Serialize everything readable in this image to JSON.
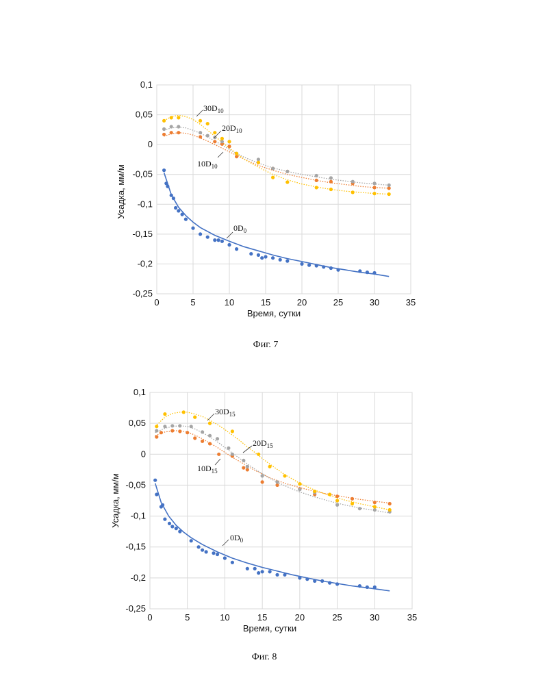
{
  "chart_data": [
    {
      "type": "scatter",
      "figure_caption": "Фиг. 7",
      "xlabel": "Время, сутки",
      "ylabel": "Усадка, мм/м",
      "xlim": [
        0,
        35
      ],
      "ylim": [
        -0.25,
        0.1
      ],
      "xticks": [
        0,
        5,
        10,
        15,
        20,
        25,
        30,
        35
      ],
      "yticks": [
        0.1,
        0.05,
        0,
        -0.05,
        -0.1,
        -0.15,
        -0.2,
        -0.25
      ],
      "xtick_labels": [
        "0",
        "5",
        "10",
        "15",
        "20",
        "25",
        "30",
        "35"
      ],
      "ytick_labels": [
        "0,1",
        "0,05",
        "0",
        "-0,05",
        "-0,1",
        "-0,15",
        "-0,2",
        "-0,25"
      ],
      "grid": true,
      "series": [
        {
          "name": "0D0",
          "label_main": "0D",
          "label_sub": "0",
          "color": "#4472c4",
          "trend_style": "solid",
          "x": [
            1,
            1.3,
            1.5,
            2,
            2.3,
            2.6,
            3,
            3.5,
            4,
            5,
            6,
            7,
            8,
            8.5,
            9,
            10,
            11,
            13,
            14,
            14.5,
            15,
            16,
            17,
            18,
            20,
            21,
            22,
            23,
            24,
            25,
            28,
            29,
            30
          ],
          "y": [
            -0.043,
            -0.065,
            -0.07,
            -0.085,
            -0.09,
            -0.106,
            -0.111,
            -0.117,
            -0.125,
            -0.14,
            -0.15,
            -0.155,
            -0.16,
            -0.16,
            -0.162,
            -0.168,
            -0.175,
            -0.183,
            -0.185,
            -0.19,
            -0.188,
            -0.19,
            -0.193,
            -0.195,
            -0.2,
            -0.202,
            -0.203,
            -0.205,
            -0.207,
            -0.21,
            -0.212,
            -0.214,
            -0.215
          ],
          "trend_x": [
            1,
            2,
            3,
            4,
            5,
            6,
            8,
            10,
            12,
            14,
            16,
            18,
            20,
            22,
            24,
            26,
            28,
            30,
            32
          ],
          "trend_y": [
            -0.047,
            -0.084,
            -0.105,
            -0.119,
            -0.13,
            -0.139,
            -0.152,
            -0.162,
            -0.171,
            -0.178,
            -0.185,
            -0.191,
            -0.196,
            -0.201,
            -0.206,
            -0.21,
            -0.214,
            -0.217,
            -0.221
          ]
        },
        {
          "name": "10D10",
          "label_main": "10D",
          "label_sub": "10",
          "color": "#ed7d31",
          "trend_style": "dotted",
          "x": [
            1,
            2,
            3,
            6,
            8,
            9,
            10,
            11,
            14,
            16,
            18,
            22,
            24,
            27,
            30,
            32
          ],
          "y": [
            0.017,
            0.02,
            0.02,
            0.013,
            0.005,
            0.001,
            -0.003,
            -0.02,
            -0.03,
            -0.04,
            -0.045,
            -0.06,
            -0.062,
            -0.065,
            -0.072,
            -0.073
          ],
          "trend_x": [
            1,
            2,
            3,
            4,
            5,
            6,
            7,
            8,
            9,
            10,
            11,
            12,
            14,
            16,
            18,
            20,
            22,
            24,
            26,
            28,
            30,
            32
          ],
          "trend_y": [
            0.014,
            0.018,
            0.02,
            0.019,
            0.016,
            0.011,
            0.006,
            0.0,
            -0.006,
            -0.012,
            -0.018,
            -0.024,
            -0.035,
            -0.043,
            -0.05,
            -0.055,
            -0.06,
            -0.064,
            -0.067,
            -0.07,
            -0.072,
            -0.073
          ]
        },
        {
          "name": "20D10",
          "label_main": "20D",
          "label_sub": "10",
          "color": "#a5a5a5",
          "trend_style": "dotted",
          "x": [
            1,
            2,
            3,
            6,
            7,
            8,
            9,
            10,
            11,
            14,
            16,
            18,
            22,
            24,
            27,
            30,
            32
          ],
          "y": [
            0.026,
            0.03,
            0.03,
            0.02,
            0.015,
            0.012,
            0.005,
            0.005,
            -0.015,
            -0.025,
            -0.04,
            -0.045,
            -0.052,
            -0.056,
            -0.062,
            -0.065,
            -0.068
          ],
          "trend_x": [
            1,
            2,
            3,
            4,
            5,
            6,
            7,
            8,
            9,
            10,
            11,
            12,
            14,
            16,
            18,
            20,
            22,
            24,
            26,
            28,
            30,
            32
          ],
          "trend_y": [
            0.024,
            0.028,
            0.029,
            0.028,
            0.024,
            0.019,
            0.013,
            0.006,
            -0.001,
            -0.008,
            -0.015,
            -0.021,
            -0.031,
            -0.039,
            -0.045,
            -0.05,
            -0.054,
            -0.058,
            -0.061,
            -0.064,
            -0.066,
            -0.068
          ]
        },
        {
          "name": "30D10",
          "label_main": "30D",
          "label_sub": "10",
          "color": "#ffc000",
          "trend_style": "dotted",
          "x": [
            1,
            2,
            3,
            6,
            7,
            8,
            9,
            10,
            11,
            14,
            16,
            18,
            22,
            24,
            27,
            30,
            32
          ],
          "y": [
            0.04,
            0.045,
            0.045,
            0.04,
            0.035,
            0.02,
            0.01,
            0.005,
            -0.015,
            -0.03,
            -0.055,
            -0.063,
            -0.072,
            -0.075,
            -0.08,
            -0.082,
            -0.083
          ],
          "trend_x": [
            1,
            2,
            3,
            4,
            5,
            6,
            7,
            8,
            9,
            10,
            11,
            12,
            13,
            14,
            16,
            18,
            20,
            22,
            24,
            26,
            28,
            30,
            32
          ],
          "trend_y": [
            0.04,
            0.047,
            0.049,
            0.047,
            0.042,
            0.034,
            0.024,
            0.014,
            0.004,
            -0.006,
            -0.015,
            -0.024,
            -0.031,
            -0.038,
            -0.05,
            -0.059,
            -0.066,
            -0.071,
            -0.075,
            -0.078,
            -0.08,
            -0.082,
            -0.083
          ]
        }
      ]
    },
    {
      "type": "scatter",
      "figure_caption": "Фиг. 8",
      "xlabel": "Время, сутки",
      "ylabel": "Усадка, мм/м",
      "xlim": [
        0,
        35
      ],
      "ylim": [
        -0.25,
        0.1
      ],
      "xticks": [
        0,
        5,
        10,
        15,
        20,
        25,
        30,
        35
      ],
      "yticks": [
        0.1,
        0.05,
        0,
        -0.05,
        -0.1,
        -0.15,
        -0.2,
        -0.25
      ],
      "xtick_labels": [
        "0",
        "5",
        "10",
        "15",
        "20",
        "25",
        "30",
        "35"
      ],
      "ytick_labels": [
        "0,1",
        "0,05",
        "0",
        "-0,05",
        "-0,1",
        "-0,15",
        "-0,2",
        "-0,25"
      ],
      "grid": true,
      "series": [
        {
          "name": "0D0",
          "label_main": "0D",
          "label_sub": "0",
          "color": "#4472c4",
          "trend_style": "solid",
          "x": [
            0.7,
            0.9,
            1.5,
            1.7,
            2,
            2.6,
            3,
            3.5,
            4,
            5.5,
            6.5,
            7,
            7.5,
            8.5,
            9,
            10,
            11,
            13,
            14,
            14.5,
            15,
            16,
            17,
            18,
            20,
            21,
            22,
            23,
            24,
            25,
            28,
            29,
            30
          ],
          "y": [
            -0.042,
            -0.065,
            -0.085,
            -0.082,
            -0.105,
            -0.112,
            -0.117,
            -0.12,
            -0.125,
            -0.14,
            -0.15,
            -0.155,
            -0.158,
            -0.16,
            -0.162,
            -0.168,
            -0.175,
            -0.185,
            -0.185,
            -0.192,
            -0.19,
            -0.19,
            -0.195,
            -0.195,
            -0.2,
            -0.202,
            -0.205,
            -0.205,
            -0.208,
            -0.21,
            -0.213,
            -0.215,
            -0.215
          ],
          "trend_x": [
            0.7,
            1.5,
            2.5,
            3.5,
            4.5,
            5.5,
            7,
            9,
            11,
            13,
            15,
            17,
            19,
            21,
            23,
            25,
            27,
            29,
            32
          ],
          "trend_y": [
            -0.047,
            -0.078,
            -0.1,
            -0.115,
            -0.126,
            -0.135,
            -0.146,
            -0.158,
            -0.168,
            -0.176,
            -0.183,
            -0.189,
            -0.195,
            -0.2,
            -0.205,
            -0.209,
            -0.213,
            -0.216,
            -0.221
          ]
        },
        {
          "name": "10D15",
          "label_main": "10D",
          "label_sub": "15",
          "color": "#ed7d31",
          "trend_style": "dotted",
          "x": [
            0.9,
            1.5,
            3,
            4,
            5,
            6,
            7,
            8,
            9.2,
            11,
            12.5,
            13,
            15,
            17,
            20,
            22,
            25,
            27,
            30,
            32
          ],
          "y": [
            0.028,
            0.035,
            0.038,
            0.037,
            0.035,
            0.026,
            0.021,
            0.017,
            0.0,
            -0.003,
            -0.022,
            -0.025,
            -0.045,
            -0.05,
            -0.056,
            -0.065,
            -0.068,
            -0.072,
            -0.078,
            -0.08
          ],
          "trend_x": [
            0.7,
            2,
            3,
            4,
            5,
            6,
            7,
            8,
            9,
            10,
            11,
            12,
            13,
            14,
            16,
            18,
            20,
            22,
            24,
            26,
            28,
            30,
            32
          ],
          "trend_y": [
            0.03,
            0.036,
            0.038,
            0.038,
            0.036,
            0.031,
            0.025,
            0.018,
            0.011,
            0.003,
            -0.005,
            -0.012,
            -0.019,
            -0.026,
            -0.038,
            -0.047,
            -0.054,
            -0.06,
            -0.065,
            -0.069,
            -0.073,
            -0.076,
            -0.079
          ]
        },
        {
          "name": "20D15",
          "label_main": "20D",
          "label_sub": "15",
          "color": "#a5a5a5",
          "trend_style": "dotted",
          "x": [
            0.9,
            2,
            3,
            4,
            5.5,
            7,
            8,
            9,
            10.5,
            11,
            12.5,
            13,
            15,
            17,
            20,
            22,
            25,
            28,
            30,
            32
          ],
          "y": [
            0.038,
            0.045,
            0.046,
            0.046,
            0.045,
            0.036,
            0.03,
            0.025,
            0.01,
            0.0,
            -0.01,
            -0.02,
            -0.035,
            -0.045,
            -0.057,
            -0.062,
            -0.082,
            -0.088,
            -0.09,
            -0.093
          ],
          "trend_x": [
            0.7,
            2,
            3,
            4,
            5,
            6,
            7,
            8,
            9,
            10,
            11,
            12,
            14,
            16,
            18,
            20,
            22,
            24,
            26,
            28,
            30,
            32
          ],
          "trend_y": [
            0.035,
            0.042,
            0.045,
            0.046,
            0.045,
            0.041,
            0.035,
            0.028,
            0.02,
            0.011,
            0.002,
            -0.007,
            -0.024,
            -0.039,
            -0.051,
            -0.061,
            -0.069,
            -0.076,
            -0.082,
            -0.087,
            -0.091,
            -0.095
          ]
        },
        {
          "name": "30D15",
          "label_main": "30D",
          "label_sub": "15",
          "color": "#ffc000",
          "trend_style": "dotted",
          "x": [
            0.9,
            2,
            4.5,
            6,
            8,
            11,
            14.5,
            16,
            18,
            20,
            22,
            24,
            25,
            27,
            30,
            32
          ],
          "y": [
            0.045,
            0.065,
            0.068,
            0.06,
            0.05,
            0.037,
            0.0,
            -0.02,
            -0.035,
            -0.048,
            -0.06,
            -0.065,
            -0.075,
            -0.08,
            -0.085,
            -0.09
          ],
          "trend_x": [
            0.7,
            2,
            3,
            4,
            5,
            6,
            7,
            8,
            9,
            10,
            11,
            12,
            13,
            14,
            15,
            16,
            18,
            20,
            22,
            24,
            26,
            28,
            30,
            32
          ],
          "trend_y": [
            0.045,
            0.06,
            0.066,
            0.068,
            0.068,
            0.065,
            0.061,
            0.055,
            0.048,
            0.04,
            0.031,
            0.022,
            0.012,
            0.003,
            -0.007,
            -0.016,
            -0.033,
            -0.047,
            -0.058,
            -0.067,
            -0.074,
            -0.08,
            -0.085,
            -0.09
          ]
        }
      ]
    }
  ]
}
